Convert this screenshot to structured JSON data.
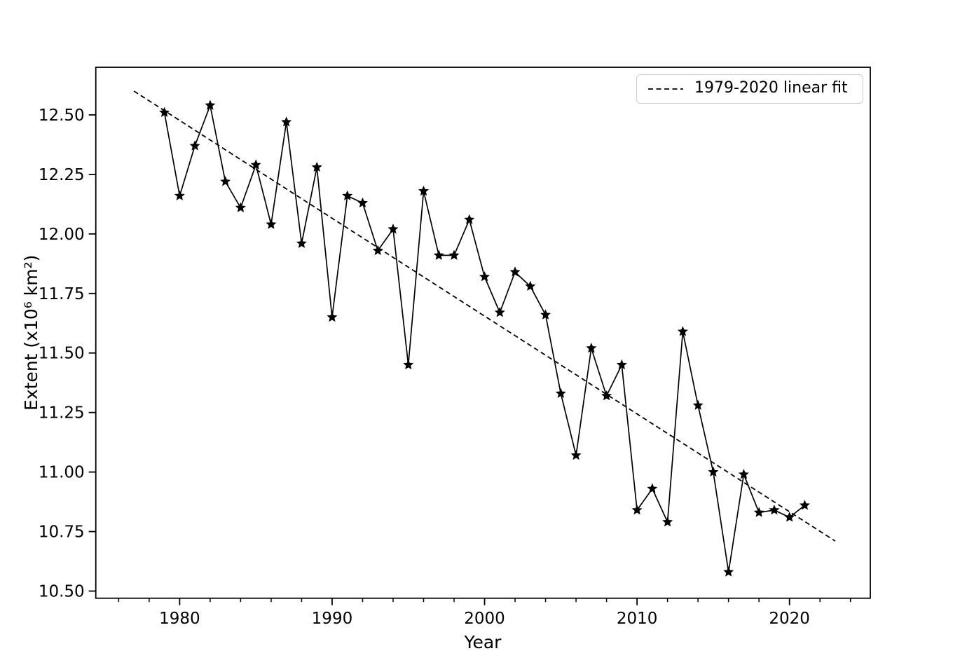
{
  "chart_data": {
    "type": "line",
    "title": "",
    "xlabel": "Year",
    "ylabel": "Extent (x10⁶ km²)",
    "x": [
      1979,
      1980,
      1981,
      1982,
      1983,
      1984,
      1985,
      1986,
      1987,
      1988,
      1989,
      1990,
      1991,
      1992,
      1993,
      1994,
      1995,
      1996,
      1997,
      1998,
      1999,
      2000,
      2001,
      2002,
      2003,
      2004,
      2005,
      2006,
      2007,
      2008,
      2009,
      2010,
      2011,
      2012,
      2013,
      2014,
      2015,
      2016,
      2017,
      2018,
      2019,
      2020,
      2021
    ],
    "series": [
      {
        "name": "extent",
        "color": "#000000",
        "marker": "star",
        "linestyle": "solid",
        "values": [
          12.51,
          12.16,
          12.37,
          12.54,
          12.22,
          12.11,
          12.29,
          12.04,
          12.47,
          11.96,
          12.28,
          11.65,
          12.16,
          12.13,
          11.93,
          12.02,
          11.45,
          12.18,
          11.91,
          11.91,
          12.06,
          11.82,
          11.67,
          11.84,
          11.78,
          11.66,
          11.33,
          11.07,
          11.52,
          11.32,
          11.45,
          10.84,
          10.93,
          10.79,
          11.59,
          11.28,
          11.0,
          10.58,
          10.99,
          10.83,
          10.84,
          10.81,
          10.86
        ]
      },
      {
        "name": "1979-2020 linear fit",
        "color": "#000000",
        "marker": "none",
        "linestyle": "dashed",
        "x": [
          1977,
          2023
        ],
        "values": [
          12.6,
          10.71
        ]
      }
    ],
    "xlim": [
      1974.5,
      2025.3
    ],
    "ylim": [
      10.47,
      12.7
    ],
    "xticks": [
      1980,
      1990,
      2000,
      2010,
      2020
    ],
    "xtick_labels": [
      "1980",
      "1990",
      "2000",
      "2010",
      "2020"
    ],
    "x_minor_tick_step": 2,
    "yticks": [
      10.5,
      10.75,
      11.0,
      11.25,
      11.5,
      11.75,
      12.0,
      12.25,
      12.5
    ],
    "ytick_labels": [
      "10.50",
      "10.75",
      "11.00",
      "11.25",
      "11.50",
      "11.75",
      "12.00",
      "12.25",
      "12.50"
    ],
    "grid": false,
    "legend_position": "upper right",
    "legend_label": "1979-2020 linear fit"
  },
  "colors": {
    "line": "#000000",
    "fit_line": "#000000",
    "spine": "#000000",
    "background": "#ffffff",
    "legend_border": "#cccccc"
  }
}
